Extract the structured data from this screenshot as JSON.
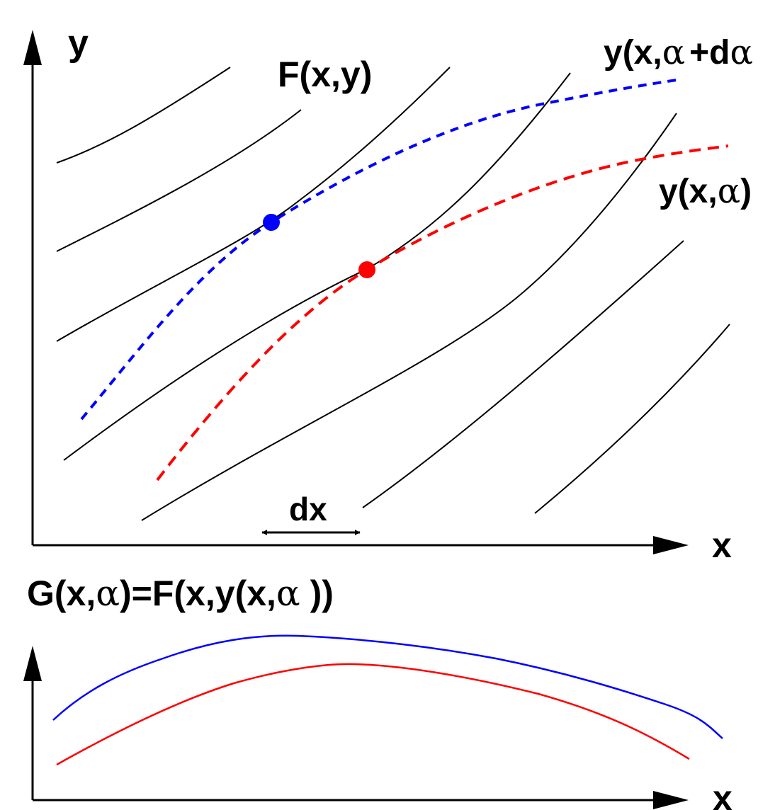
{
  "top_plot": {
    "y_axis_label": "y",
    "x_axis_label": "x",
    "contour_label": "F(x,y)",
    "curve_blue_label": {
      "prefix": "y(x,",
      "greek": "α",
      "suffix": "+d",
      "greek2": "α"
    },
    "curve_red_label": {
      "prefix": "y(x,",
      "greek": "α",
      "suffix": ")"
    },
    "dx_label": "dx",
    "colors": {
      "blue": "#0000ff",
      "red": "#ff0000",
      "contour": "#000000"
    }
  },
  "bottom_plot": {
    "title": {
      "prefix": "G(x,",
      "greek": "α",
      "middle": ")=F(x,y(x,",
      "greek2": "α",
      "suffix": " ))"
    },
    "x_axis_label": "x",
    "colors": {
      "blue": "#0000ff",
      "red": "#ff0000"
    }
  }
}
